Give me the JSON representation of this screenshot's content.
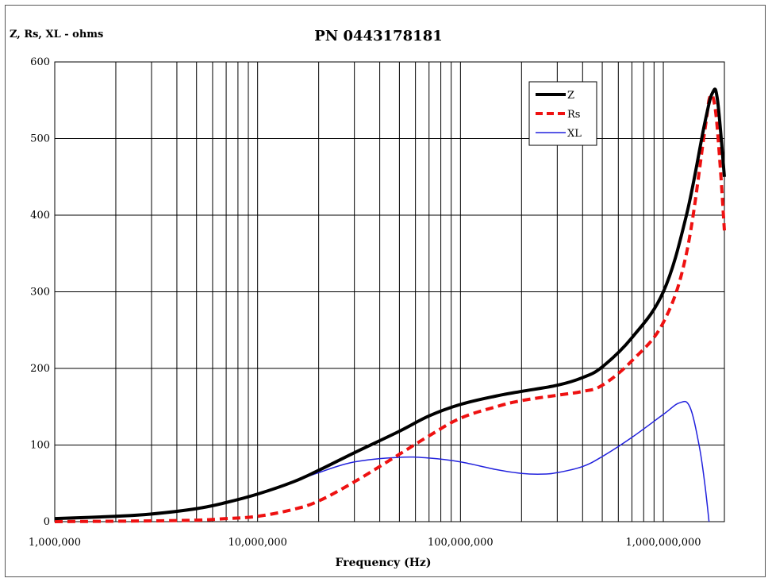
{
  "chart_data": {
    "type": "line",
    "title": "PN 0443178181",
    "ylabel": "Z, Rs, XL - ohms",
    "xlabel": "Frequency (Hz)",
    "x_scale": "log",
    "xlim": [
      1000000,
      2000000000
    ],
    "ylim": [
      0,
      600
    ],
    "yticks": [
      0,
      100,
      200,
      300,
      400,
      500,
      600
    ],
    "ytick_labels": [
      "0",
      "100",
      "200",
      "300",
      "400",
      "500",
      "600"
    ],
    "xticks": [
      1000000,
      10000000,
      100000000,
      1000000000
    ],
    "xtick_labels": [
      "1,000,000",
      "10,000,000",
      "100,000,000",
      "1,000,000,000"
    ],
    "grid": true,
    "legend_position": "top-right",
    "series": [
      {
        "name": "Z",
        "color": "#000000",
        "style": "solid-thick",
        "x": [
          1000000,
          2000000,
          3000000,
          5000000,
          7000000,
          10000000,
          15000000,
          20000000,
          30000000,
          50000000,
          70000000,
          100000000,
          150000000,
          200000000,
          300000000,
          400000000,
          500000000,
          700000000,
          1000000000,
          1300000000,
          1600000000,
          1750000000,
          1850000000,
          2000000000
        ],
        "y": [
          4,
          7,
          10,
          17,
          25,
          36,
          52,
          67,
          90,
          118,
          138,
          153,
          164,
          170,
          178,
          188,
          202,
          240,
          300,
          400,
          520,
          560,
          550,
          450
        ]
      },
      {
        "name": "Rs",
        "color": "#ee1111",
        "style": "dashed-thick",
        "x": [
          1000000,
          3000000,
          5000000,
          7000000,
          10000000,
          15000000,
          20000000,
          30000000,
          50000000,
          70000000,
          100000000,
          150000000,
          200000000,
          300000000,
          400000000,
          500000000,
          700000000,
          1000000000,
          1300000000,
          1600000000,
          1700000000,
          1800000000,
          1900000000,
          2000000000
        ],
        "y": [
          0,
          1,
          2,
          4,
          7,
          16,
          27,
          52,
          88,
          112,
          135,
          150,
          158,
          165,
          170,
          178,
          210,
          260,
          350,
          510,
          555,
          540,
          470,
          380
        ]
      },
      {
        "name": "XL",
        "color": "#2222dd",
        "style": "solid-thin",
        "x": [
          1000000,
          2000000,
          3000000,
          5000000,
          7000000,
          10000000,
          15000000,
          20000000,
          30000000,
          50000000,
          70000000,
          100000000,
          150000000,
          200000000,
          250000000,
          300000000,
          400000000,
          500000000,
          700000000,
          1000000000,
          1200000000,
          1350000000,
          1500000000,
          1600000000,
          1680000000
        ],
        "y": [
          4,
          7,
          10,
          17,
          25,
          36,
          52,
          64,
          78,
          84,
          83,
          78,
          68,
          63,
          62,
          64,
          72,
          85,
          110,
          140,
          155,
          150,
          100,
          50,
          0
        ]
      }
    ]
  }
}
